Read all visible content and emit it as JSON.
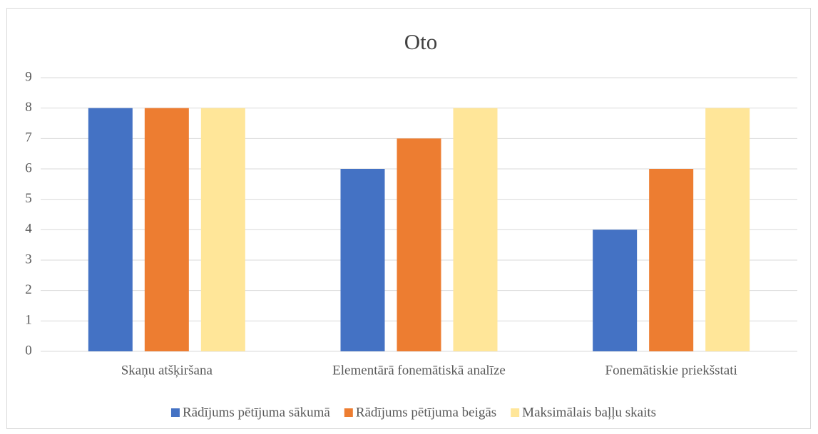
{
  "chart_data": {
    "type": "bar",
    "title": "Oto",
    "categories": [
      "Skaņu atšķiršana",
      "Elementārā fonemātiskā analīze",
      "Fonemātiskie priekšstati"
    ],
    "series": [
      {
        "name": "Rādījums pētījuma sākumā",
        "color": "#4472c4",
        "values": [
          8,
          6,
          4
        ]
      },
      {
        "name": "Rādījums pētījuma beigās",
        "color": "#ed7d31",
        "values": [
          8,
          7,
          6
        ]
      },
      {
        "name": "Maksimālais baļļu skaits",
        "color": "#ffe699",
        "values": [
          8,
          8,
          8
        ]
      }
    ],
    "ylim": [
      0,
      9
    ],
    "yticks": [
      0,
      1,
      2,
      3,
      4,
      5,
      6,
      7,
      8,
      9
    ],
    "grid": true,
    "legend": "bottom"
  }
}
